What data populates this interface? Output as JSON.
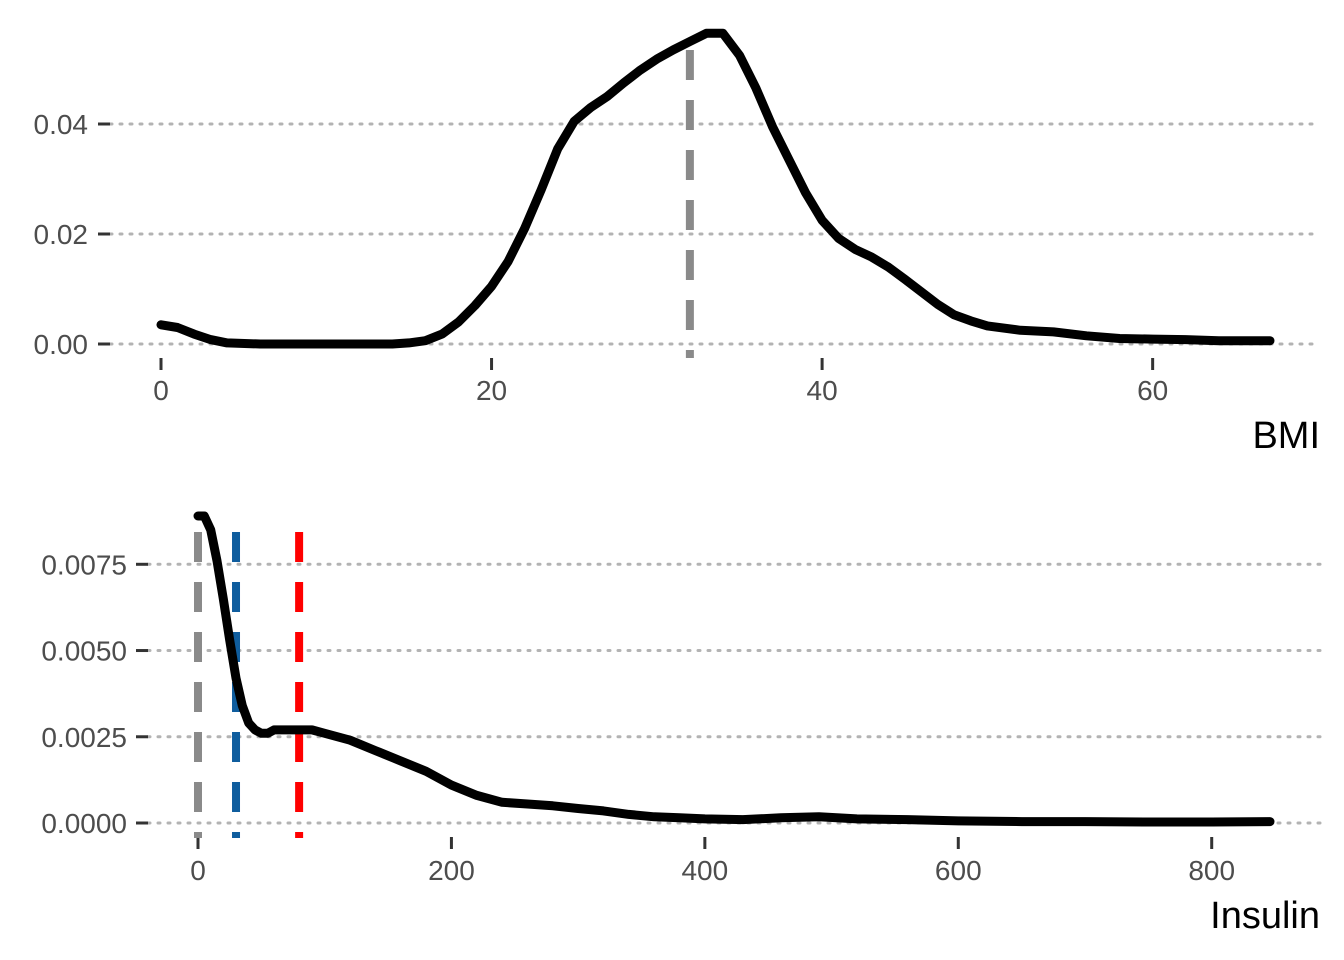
{
  "chart_data": [
    {
      "type": "line",
      "title": "",
      "xlabel": "BMI",
      "ylabel": "",
      "xlim": [
        0,
        67.1
      ],
      "ylim": [
        0,
        0.056
      ],
      "x_ticks": [
        "0",
        "20",
        "40",
        "60"
      ],
      "x_tick_values": [
        0,
        20,
        40,
        60
      ],
      "y_ticks": [
        "0.00",
        "0.02",
        "0.04"
      ],
      "y_tick_values": [
        0,
        0.02,
        0.04
      ],
      "grid": "horizontal dotted",
      "legend": "none",
      "series": [
        {
          "color": "#000000",
          "x": [
            0,
            1,
            2,
            3,
            4,
            6,
            8,
            10,
            12,
            14,
            15,
            16,
            17,
            18,
            19,
            20,
            21,
            22,
            23,
            24,
            25,
            26,
            27,
            28,
            29,
            30,
            31,
            32,
            33,
            34,
            35,
            36,
            37,
            38,
            39,
            40,
            41,
            42,
            43,
            44,
            45,
            46,
            47,
            48,
            49,
            50,
            52,
            54,
            56,
            58,
            60,
            62,
            64,
            66,
            67.1
          ],
          "y": [
            0.0035,
            0.003,
            0.0018,
            0.0008,
            0.0002,
            0.0,
            0.0,
            0.0,
            0.0,
            0.0,
            0.0002,
            0.0006,
            0.0018,
            0.004,
            0.007,
            0.0105,
            0.015,
            0.021,
            0.028,
            0.0355,
            0.0405,
            0.043,
            0.045,
            0.0475,
            0.0498,
            0.0518,
            0.0535,
            0.055,
            0.0565,
            0.0565,
            0.0525,
            0.0465,
            0.0395,
            0.0335,
            0.0275,
            0.0225,
            0.0192,
            0.0172,
            0.0158,
            0.014,
            0.0118,
            0.0095,
            0.0072,
            0.0053,
            0.0042,
            0.0033,
            0.0025,
            0.0022,
            0.0015,
            0.001,
            0.0009,
            0.0008,
            0.0006,
            0.0006,
            0.0006
          ]
        }
      ],
      "reference_lines": [
        {
          "x": 32,
          "color": "#8a8a8a",
          "style": "dashed"
        }
      ]
    },
    {
      "type": "line",
      "title": "",
      "xlabel": "Insulin",
      "ylabel": "",
      "xlim": [
        0,
        846
      ],
      "ylim": [
        0,
        0.0089
      ],
      "x_ticks": [
        "0",
        "200",
        "400",
        "600",
        "800"
      ],
      "x_tick_values": [
        0,
        200,
        400,
        600,
        800
      ],
      "y_ticks": [
        "0.0000",
        "0.0025",
        "0.0050",
        "0.0075"
      ],
      "y_tick_values": [
        0,
        0.0025,
        0.005,
        0.0075
      ],
      "grid": "horizontal dotted",
      "legend": "none",
      "series": [
        {
          "color": "#000000",
          "x": [
            0,
            5,
            10,
            15,
            20,
            25,
            30,
            35,
            40,
            45,
            50,
            55,
            60,
            70,
            80,
            90,
            100,
            120,
            140,
            160,
            180,
            200,
            220,
            240,
            260,
            280,
            300,
            320,
            340,
            360,
            380,
            400,
            430,
            460,
            490,
            520,
            560,
            600,
            650,
            700,
            750,
            800,
            846
          ],
          "y": [
            0.0089,
            0.0089,
            0.0085,
            0.0076,
            0.0065,
            0.0053,
            0.0042,
            0.0034,
            0.0029,
            0.0027,
            0.0026,
            0.0026,
            0.0027,
            0.0027,
            0.0027,
            0.0027,
            0.0026,
            0.0024,
            0.0021,
            0.0018,
            0.0015,
            0.0011,
            0.0008,
            0.0006,
            0.00055,
            0.0005,
            0.00042,
            0.00035,
            0.00025,
            0.00018,
            0.00015,
            0.00012,
            0.0001,
            0.00015,
            0.00018,
            0.00012,
            0.0001,
            6e-05,
            4e-05,
            4e-05,
            3e-05,
            3e-05,
            4e-05
          ]
        }
      ],
      "reference_lines": [
        {
          "x": 0,
          "color": "#8a8a8a",
          "style": "dashed"
        },
        {
          "x": 30,
          "color": "#0f5d9e",
          "style": "dashed"
        },
        {
          "x": 79.8,
          "color": "#ff0000",
          "style": "dashed"
        }
      ]
    }
  ]
}
